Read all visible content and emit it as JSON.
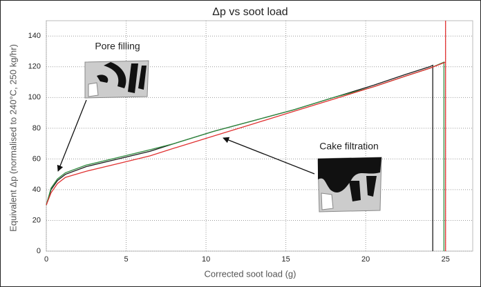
{
  "chart_data": {
    "type": "line",
    "title": "Δp vs soot load",
    "xlabel": "Corrected soot load (g)",
    "ylabel": "Equivalent Δp (normalised to 240°C, 250 kg/hr)",
    "xlim": [
      0,
      26.7
    ],
    "ylim": [
      0,
      150
    ],
    "xticks": [
      0,
      5,
      10,
      15,
      20,
      25
    ],
    "yticks": [
      0,
      20,
      40,
      60,
      80,
      100,
      120,
      140
    ],
    "grid": true,
    "annotations": [
      "Pore filling",
      "Cake filtration"
    ],
    "series": [
      {
        "color": "#1a1a1a",
        "x": [
          0,
          0.3,
          0.7,
          1.2,
          2.5,
          4.5,
          6.5,
          8,
          10.5,
          13,
          15.5,
          18,
          20.5,
          22.5,
          24,
          24.2,
          24.2
        ],
        "values": [
          30,
          40,
          46,
          50,
          55,
          60,
          65,
          70,
          78,
          85,
          92,
          100,
          108,
          115,
          120,
          121,
          0
        ]
      },
      {
        "color": "#2e8b3e",
        "x": [
          0,
          0.3,
          0.7,
          1.2,
          2.5,
          4.5,
          6.5,
          8,
          10.5,
          13,
          15.5,
          18,
          20.5,
          22.5,
          24,
          24.9,
          24.9
        ],
        "values": [
          30,
          41,
          47,
          51,
          56,
          61,
          66,
          70,
          78,
          85,
          92,
          100,
          107,
          114,
          119,
          123,
          0
        ]
      },
      {
        "color": "#e03030",
        "x": [
          0,
          0.3,
          0.7,
          1.2,
          2.5,
          4.5,
          6.5,
          8,
          10.5,
          13,
          15.5,
          18,
          20.5,
          22.5,
          24,
          25,
          25,
          25
        ],
        "values": [
          30,
          38,
          44,
          48,
          52,
          57,
          62,
          67,
          75,
          83,
          91,
          99,
          107,
          114,
          119,
          123,
          150,
          0
        ]
      }
    ]
  }
}
